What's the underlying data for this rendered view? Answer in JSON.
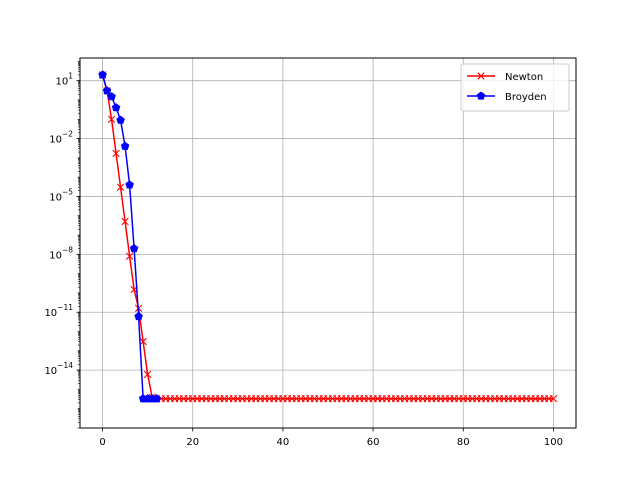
{
  "chart_data": {
    "type": "line",
    "title": "",
    "xlabel": "",
    "ylabel": "",
    "y_scale": "log",
    "xlim": [
      -5,
      105
    ],
    "ylim": [
      1e-17,
      150
    ],
    "x_ticks": [
      {
        "value": 0,
        "label": "0"
      },
      {
        "value": 20,
        "label": "20"
      },
      {
        "value": 40,
        "label": "40"
      },
      {
        "value": 60,
        "label": "60"
      },
      {
        "value": 80,
        "label": "80"
      },
      {
        "value": 100,
        "label": "100"
      }
    ],
    "y_ticks": [
      {
        "value": 10,
        "base": "10",
        "exp": "1"
      },
      {
        "value": 0.01,
        "base": "10",
        "exp": "−2"
      },
      {
        "value": 1e-05,
        "base": "10",
        "exp": "−5"
      },
      {
        "value": 1e-08,
        "base": "10",
        "exp": "−8"
      },
      {
        "value": 1e-11,
        "base": "10",
        "exp": "−11"
      },
      {
        "value": 1e-14,
        "base": "10",
        "exp": "−14"
      }
    ],
    "grid": true,
    "legend_position": "upper-right",
    "series": [
      {
        "name": "Newton",
        "color": "#ff0000",
        "marker": "x",
        "x": [
          0,
          1,
          2,
          3,
          4,
          5,
          6,
          7,
          8,
          9,
          10,
          11,
          12,
          13,
          14,
          15,
          16,
          17,
          18,
          19,
          20,
          21,
          22,
          23,
          24,
          25,
          26,
          27,
          28,
          29,
          30,
          31,
          32,
          33,
          34,
          35,
          36,
          37,
          38,
          39,
          40,
          41,
          42,
          43,
          44,
          45,
          46,
          47,
          48,
          49,
          50,
          51,
          52,
          53,
          54,
          55,
          56,
          57,
          58,
          59,
          60,
          61,
          62,
          63,
          64,
          65,
          66,
          67,
          68,
          69,
          70,
          71,
          72,
          73,
          74,
          75,
          76,
          77,
          78,
          79,
          80,
          81,
          82,
          83,
          84,
          85,
          86,
          87,
          88,
          89,
          90,
          91,
          92,
          93,
          94,
          95,
          96,
          97,
          98,
          99,
          100
        ],
        "y": [
          20,
          3,
          0.1,
          0.0017,
          3e-05,
          5e-07,
          8e-09,
          1.5e-10,
          1.6e-11,
          3e-13,
          6e-15,
          4e-16,
          3.3e-16,
          3.3e-16,
          3.3e-16,
          3.3e-16,
          3.3e-16,
          3.3e-16,
          3.3e-16,
          3.3e-16,
          3.3e-16,
          3.3e-16,
          3.3e-16,
          3.3e-16,
          3.3e-16,
          3.3e-16,
          3.3e-16,
          3.3e-16,
          3.3e-16,
          3.3e-16,
          3.3e-16,
          3.3e-16,
          3.3e-16,
          3.3e-16,
          3.3e-16,
          3.3e-16,
          3.3e-16,
          3.3e-16,
          3.3e-16,
          3.3e-16,
          3.3e-16,
          3.3e-16,
          3.3e-16,
          3.3e-16,
          3.3e-16,
          3.3e-16,
          3.3e-16,
          3.3e-16,
          3.3e-16,
          3.3e-16,
          3.3e-16,
          3.3e-16,
          3.3e-16,
          3.3e-16,
          3.3e-16,
          3.3e-16,
          3.3e-16,
          3.3e-16,
          3.3e-16,
          3.3e-16,
          3.3e-16,
          3.3e-16,
          3.3e-16,
          3.3e-16,
          3.3e-16,
          3.3e-16,
          3.3e-16,
          3.3e-16,
          3.3e-16,
          3.3e-16,
          3.3e-16,
          3.3e-16,
          3.3e-16,
          3.3e-16,
          3.3e-16,
          3.3e-16,
          3.3e-16,
          3.3e-16,
          3.3e-16,
          3.3e-16,
          3.3e-16,
          3.3e-16,
          3.3e-16,
          3.3e-16,
          3.3e-16,
          3.3e-16,
          3.3e-16,
          3.3e-16,
          3.3e-16,
          3.3e-16,
          3.3e-16,
          3.3e-16,
          3.3e-16,
          3.3e-16,
          3.3e-16,
          3.3e-16,
          3.3e-16,
          3.3e-16,
          3.3e-16,
          3.3e-16,
          3.3e-16
        ]
      },
      {
        "name": "Broyden",
        "color": "#0000ff",
        "marker": "pentagon",
        "x": [
          0,
          1,
          2,
          3,
          4,
          5,
          6,
          7,
          8,
          9,
          10,
          11,
          12
        ],
        "y": [
          20,
          3,
          1.5,
          0.4,
          0.09,
          0.004,
          4e-05,
          2e-08,
          6e-12,
          3.3e-16,
          3.3e-16,
          3.3e-16,
          3.3e-16
        ]
      }
    ]
  }
}
